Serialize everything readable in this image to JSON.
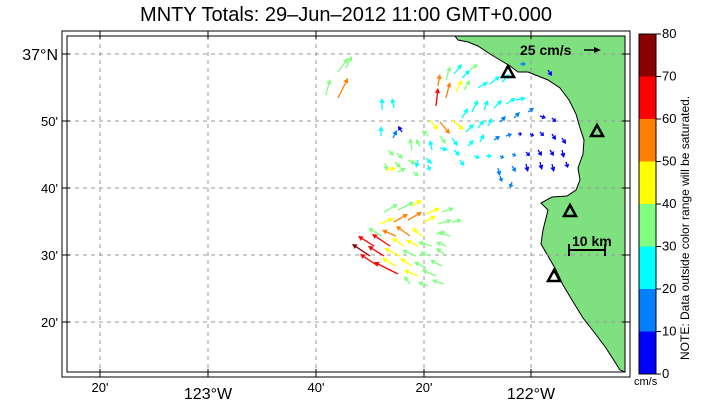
{
  "title": "MNTY Totals: 29–Jun–2012 11:00 GMT+0.000",
  "y_axis": {
    "labels": [
      {
        "text": "37°N",
        "major": true
      },
      {
        "text": "50'",
        "major": false
      },
      {
        "text": "40'",
        "major": false
      },
      {
        "text": "30'",
        "major": false
      },
      {
        "text": "20'",
        "major": false
      }
    ]
  },
  "x_axis": {
    "labels": [
      {
        "text": "20'",
        "major": false
      },
      {
        "text": "123°W",
        "major": true
      },
      {
        "text": "40'",
        "major": false
      },
      {
        "text": "20'",
        "major": false
      },
      {
        "text": "122°W",
        "major": true
      }
    ]
  },
  "scale_vector_label": "25 cm/s",
  "scale_bar_label": "10 km",
  "colorbar": {
    "ticks": [
      "80",
      "70",
      "60",
      "50",
      "40",
      "30",
      "20",
      "10",
      "0"
    ],
    "unit": "cm/s",
    "note": "NOTE: Data outside color range will be saturated.",
    "colors": [
      "#8b0000",
      "#ff0000",
      "#ff8000",
      "#ffff00",
      "#80ff80",
      "#00ffff",
      "#0080ff",
      "#0000ff"
    ]
  },
  "colors": {
    "land": "#7fe07f",
    "station_marker": "#000000"
  },
  "stations_count_shown": 5
}
